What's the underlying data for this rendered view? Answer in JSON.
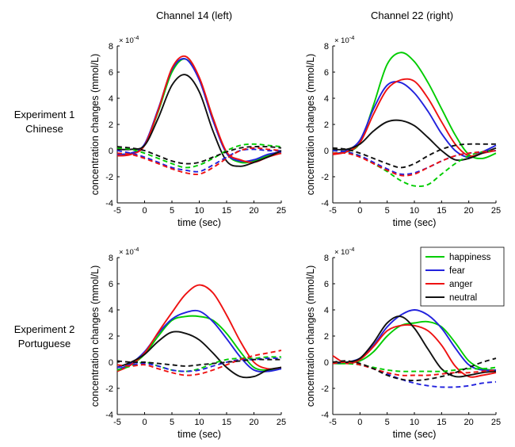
{
  "column_titles": [
    "Channel 14 (left)",
    "Channel 22 (right)"
  ],
  "row_labels": [
    {
      "line1": "Experiment 1",
      "line2": "Chinese"
    },
    {
      "line1": "Experiment 2",
      "line2": "Portuguese"
    }
  ],
  "colors": {
    "happiness": "#00cc00",
    "fear": "#2222dd",
    "anger": "#ee1111",
    "neutral": "#111111"
  },
  "legend": {
    "placement": "top-right of lower-right panel",
    "entries": [
      {
        "label": "happiness",
        "color_key": "happiness"
      },
      {
        "label": "fear",
        "color_key": "fear"
      },
      {
        "label": "anger",
        "color_key": "anger"
      },
      {
        "label": "neutral",
        "color_key": "neutral"
      }
    ]
  },
  "chart_data": [
    {
      "type": "line",
      "xlabel": "time (sec)",
      "ylabel": "concentration changes (mmol/L)",
      "exponent_label": "x 10^-4",
      "xlim": [
        -5,
        25
      ],
      "ylim": [
        -4,
        8
      ],
      "xticks": [
        -5,
        0,
        5,
        10,
        15,
        20,
        25
      ],
      "yticks": [
        -4,
        -2,
        0,
        2,
        4,
        6,
        8
      ],
      "x": [
        -5,
        -2.5,
        0,
        2.5,
        5,
        7.5,
        10,
        12.5,
        15,
        17.5,
        20,
        22.5,
        25
      ],
      "series": [
        {
          "color_key": "happiness",
          "style": "solid",
          "values": [
            -0.3,
            -0.2,
            0.4,
            3.0,
            6.0,
            7.0,
            5.5,
            2.5,
            -0.2,
            -0.9,
            -0.8,
            -0.4,
            -0.2
          ]
        },
        {
          "color_key": "fear",
          "style": "solid",
          "values": [
            -0.3,
            -0.2,
            0.5,
            3.2,
            6.2,
            7.0,
            5.4,
            2.3,
            -0.2,
            -0.8,
            -0.7,
            -0.3,
            -0.1
          ]
        },
        {
          "color_key": "anger",
          "style": "solid",
          "values": [
            -0.4,
            -0.3,
            0.4,
            3.1,
            6.3,
            7.2,
            5.6,
            2.5,
            -0.1,
            -0.7,
            -0.9,
            -0.5,
            -0.2
          ]
        },
        {
          "color_key": "neutral",
          "style": "solid",
          "values": [
            0.1,
            0.1,
            0.4,
            2.5,
            5.0,
            5.8,
            4.5,
            1.5,
            -0.8,
            -1.2,
            -0.9,
            -0.5,
            0.0
          ]
        },
        {
          "color_key": "happiness",
          "style": "dashed",
          "values": [
            0.2,
            0.1,
            -0.2,
            -0.6,
            -1.0,
            -1.3,
            -1.1,
            -0.6,
            0.0,
            0.4,
            0.5,
            0.4,
            0.3
          ]
        },
        {
          "color_key": "fear",
          "style": "dashed",
          "values": [
            0.0,
            -0.2,
            -0.5,
            -0.9,
            -1.3,
            -1.5,
            -1.6,
            -1.1,
            -0.5,
            0.0,
            0.1,
            0.0,
            0.0
          ]
        },
        {
          "color_key": "anger",
          "style": "dashed",
          "values": [
            -0.2,
            -0.3,
            -0.6,
            -1.0,
            -1.4,
            -1.7,
            -1.8,
            -1.3,
            -0.6,
            0.0,
            0.2,
            0.1,
            0.0
          ]
        },
        {
          "color_key": "neutral",
          "style": "dashed",
          "values": [
            0.3,
            0.2,
            0.0,
            -0.4,
            -0.8,
            -1.0,
            -0.9,
            -0.5,
            -0.1,
            0.2,
            0.3,
            0.3,
            0.2
          ]
        }
      ]
    },
    {
      "type": "line",
      "xlabel": "time (sec)",
      "ylabel": "concentration changes (mmol/L)",
      "exponent_label": "x 10^-4",
      "xlim": [
        -5,
        25
      ],
      "ylim": [
        -4,
        8
      ],
      "xticks": [
        -5,
        0,
        5,
        10,
        15,
        20,
        25
      ],
      "yticks": [
        -4,
        -2,
        0,
        2,
        4,
        6,
        8
      ],
      "x": [
        -5,
        -2.5,
        0,
        2.5,
        5,
        7.5,
        10,
        12.5,
        15,
        17.5,
        20,
        22.5,
        25
      ],
      "series": [
        {
          "color_key": "happiness",
          "style": "solid",
          "values": [
            -0.2,
            -0.1,
            0.6,
            3.5,
            6.6,
            7.5,
            6.8,
            5.2,
            3.2,
            1.2,
            -0.3,
            -0.6,
            -0.2
          ]
        },
        {
          "color_key": "fear",
          "style": "solid",
          "values": [
            -0.3,
            0.0,
            0.8,
            3.2,
            5.0,
            5.2,
            4.4,
            3.0,
            1.3,
            0.0,
            -0.5,
            -0.1,
            0.4
          ]
        },
        {
          "color_key": "anger",
          "style": "solid",
          "values": [
            -0.3,
            -0.1,
            0.6,
            2.8,
            4.7,
            5.4,
            5.3,
            4.0,
            2.2,
            0.5,
            -0.4,
            -0.2,
            0.0
          ]
        },
        {
          "color_key": "neutral",
          "style": "solid",
          "values": [
            0.1,
            0.1,
            0.5,
            1.5,
            2.2,
            2.3,
            1.9,
            1.0,
            0.0,
            -0.7,
            -0.6,
            -0.2,
            0.2
          ]
        },
        {
          "color_key": "happiness",
          "style": "dashed",
          "values": [
            0.0,
            -0.1,
            -0.4,
            -1.0,
            -1.6,
            -2.3,
            -2.7,
            -2.6,
            -1.8,
            -1.0,
            -0.4,
            -0.1,
            0.0
          ]
        },
        {
          "color_key": "fear",
          "style": "dashed",
          "values": [
            0.0,
            -0.1,
            -0.4,
            -0.9,
            -1.4,
            -1.8,
            -1.7,
            -1.3,
            -0.8,
            -0.4,
            -0.2,
            -0.1,
            0.0
          ]
        },
        {
          "color_key": "anger",
          "style": "dashed",
          "values": [
            -0.2,
            -0.2,
            -0.5,
            -1.0,
            -1.5,
            -1.9,
            -1.8,
            -1.3,
            -0.8,
            -0.4,
            -0.2,
            -0.1,
            0.0
          ]
        },
        {
          "color_key": "neutral",
          "style": "dashed",
          "values": [
            0.2,
            0.1,
            -0.2,
            -0.6,
            -1.0,
            -1.3,
            -1.0,
            -0.4,
            0.1,
            0.4,
            0.5,
            0.5,
            0.5
          ]
        }
      ]
    },
    {
      "type": "line",
      "xlabel": "time (sec)",
      "ylabel": "concentration changes (mmol/L)",
      "exponent_label": "x 10^-4",
      "xlim": [
        -5,
        25
      ],
      "ylim": [
        -4,
        8
      ],
      "xticks": [
        -5,
        0,
        5,
        10,
        15,
        20,
        25
      ],
      "yticks": [
        -4,
        -2,
        0,
        2,
        4,
        6,
        8
      ],
      "x": [
        -5,
        -2.5,
        0,
        2.5,
        5,
        7.5,
        10,
        12.5,
        15,
        17.5,
        20,
        22.5,
        25
      ],
      "series": [
        {
          "color_key": "happiness",
          "style": "solid",
          "values": [
            -0.6,
            -0.2,
            0.6,
            2.0,
            3.2,
            3.5,
            3.5,
            3.2,
            2.2,
            0.8,
            -0.4,
            -0.6,
            -0.4
          ]
        },
        {
          "color_key": "fear",
          "style": "solid",
          "values": [
            -0.6,
            -0.1,
            0.8,
            2.2,
            3.3,
            3.8,
            3.9,
            3.1,
            1.8,
            0.4,
            -0.6,
            -0.7,
            -0.5
          ]
        },
        {
          "color_key": "anger",
          "style": "solid",
          "values": [
            -0.7,
            -0.2,
            0.7,
            2.3,
            3.8,
            5.2,
            5.9,
            5.3,
            3.6,
            1.6,
            0.0,
            -0.5,
            -0.4
          ]
        },
        {
          "color_key": "neutral",
          "style": "solid",
          "values": [
            -0.4,
            0.0,
            0.6,
            1.6,
            2.3,
            2.2,
            1.7,
            0.7,
            -0.4,
            -1.1,
            -1.1,
            -0.6,
            -0.4
          ]
        },
        {
          "color_key": "happiness",
          "style": "dashed",
          "values": [
            -0.6,
            -0.3,
            0.0,
            -0.3,
            -0.6,
            -0.7,
            -0.5,
            -0.1,
            0.2,
            0.3,
            0.3,
            0.4,
            0.4
          ]
        },
        {
          "color_key": "fear",
          "style": "dashed",
          "values": [
            -0.4,
            -0.2,
            -0.1,
            -0.3,
            -0.6,
            -0.7,
            -0.6,
            -0.3,
            0.0,
            0.2,
            0.2,
            0.3,
            0.3
          ]
        },
        {
          "color_key": "anger",
          "style": "dashed",
          "values": [
            -0.2,
            -0.3,
            -0.2,
            -0.5,
            -0.8,
            -1.0,
            -0.9,
            -0.6,
            -0.2,
            0.2,
            0.5,
            0.7,
            0.9
          ]
        },
        {
          "color_key": "neutral",
          "style": "dashed",
          "values": [
            0.1,
            0.0,
            0.0,
            -0.1,
            -0.2,
            -0.3,
            -0.2,
            -0.1,
            0.0,
            0.1,
            0.2,
            0.2,
            0.2
          ]
        }
      ]
    },
    {
      "type": "line",
      "xlabel": "time (sec)",
      "ylabel": "concentration changes (mmol/L)",
      "exponent_label": "x 10^-4",
      "xlim": [
        -5,
        25
      ],
      "ylim": [
        -4,
        8
      ],
      "xticks": [
        -5,
        0,
        5,
        10,
        15,
        20,
        25
      ],
      "yticks": [
        -4,
        -2,
        0,
        2,
        4,
        6,
        8
      ],
      "x": [
        -5,
        -2.5,
        0,
        2.5,
        5,
        7.5,
        10,
        12.5,
        15,
        17.5,
        20,
        22.5,
        25
      ],
      "series": [
        {
          "color_key": "happiness",
          "style": "solid",
          "values": [
            -0.1,
            -0.1,
            0.1,
            0.8,
            2.0,
            2.8,
            3.0,
            3.1,
            2.7,
            1.5,
            0.1,
            -0.5,
            -0.6
          ]
        },
        {
          "color_key": "fear",
          "style": "solid",
          "values": [
            -0.1,
            0.0,
            0.3,
            1.3,
            2.7,
            3.6,
            4.0,
            3.6,
            2.6,
            1.1,
            -0.2,
            -0.6,
            -0.6
          ]
        },
        {
          "color_key": "anger",
          "style": "solid",
          "values": [
            0.5,
            -0.1,
            0.2,
            1.2,
            2.4,
            2.8,
            2.8,
            2.4,
            1.3,
            -0.3,
            -1.1,
            -1.0,
            -0.8
          ]
        },
        {
          "color_key": "neutral",
          "style": "solid",
          "values": [
            0.0,
            0.0,
            0.3,
            1.5,
            3.0,
            3.5,
            2.6,
            1.0,
            -0.5,
            -1.1,
            -1.0,
            -0.8,
            -0.7
          ]
        },
        {
          "color_key": "happiness",
          "style": "dashed",
          "values": [
            -0.1,
            -0.1,
            -0.2,
            -0.4,
            -0.6,
            -0.7,
            -0.7,
            -0.7,
            -0.7,
            -0.6,
            -0.5,
            -0.5,
            -0.4
          ]
        },
        {
          "color_key": "fear",
          "style": "dashed",
          "values": [
            -0.1,
            0.0,
            -0.2,
            -0.5,
            -0.9,
            -1.3,
            -1.6,
            -1.8,
            -1.9,
            -1.9,
            -1.8,
            -1.6,
            -1.5
          ]
        },
        {
          "color_key": "anger",
          "style": "dashed",
          "values": [
            -0.1,
            0.0,
            -0.2,
            -0.5,
            -0.8,
            -1.0,
            -1.0,
            -1.0,
            -0.9,
            -0.8,
            -0.8,
            -0.7,
            -0.6
          ]
        },
        {
          "color_key": "neutral",
          "style": "dashed",
          "values": [
            0.0,
            0.1,
            -0.1,
            -0.5,
            -1.0,
            -1.3,
            -1.4,
            -1.3,
            -1.1,
            -0.8,
            -0.4,
            0.0,
            0.3
          ]
        }
      ]
    }
  ]
}
